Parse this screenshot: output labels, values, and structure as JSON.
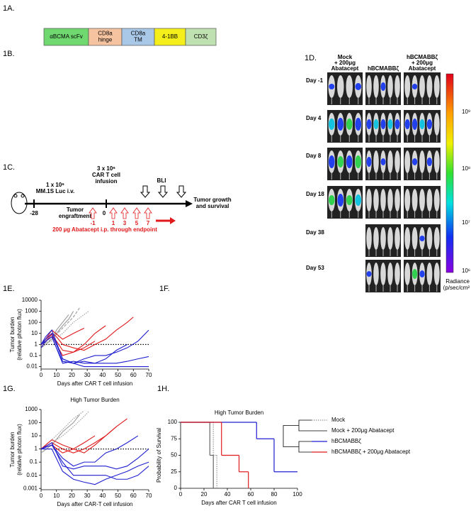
{
  "panels": {
    "a": "1A.",
    "b": "1B.",
    "c": "1C.",
    "d": "1D.",
    "e": "1E.",
    "f": "1F.",
    "g": "1G.",
    "h": "1H."
  },
  "construct": [
    [
      "αBCMA scFv"
    ],
    [
      "CD8a",
      "hinge"
    ],
    [
      "CD8a",
      "TM"
    ],
    [
      "4-1BB"
    ],
    [
      "CD3ζ"
    ]
  ],
  "imaging": {
    "columns": [
      [
        "Mock",
        "+ 200μg",
        "Abatacept"
      ],
      [
        "hBCMABBζ"
      ],
      [
        "hBCMABBζ",
        "+ 200μg",
        "Abatacept"
      ]
    ],
    "rows": [
      "Day -1",
      "Day 4",
      "Day 8",
      "Day 18",
      "Day 38",
      "Day 53"
    ],
    "colorbar_labels": [
      "10⁹",
      "10⁸",
      "10⁷",
      "10⁶"
    ],
    "colorbar_title": [
      "Radiance",
      "(p/sec/cm²"
    ]
  },
  "timeline": {
    "injection": [
      "1 x 10⁶",
      "MM.1S Luc i.v."
    ],
    "infusion": [
      "3 x 10⁶",
      "CAR T cell",
      "infusion"
    ],
    "bli": "BLI",
    "outcome": [
      "Tumor growth",
      "and survival"
    ],
    "day_start": "-28",
    "engraftment": [
      "Tumor",
      "engraftment"
    ],
    "day_zero": "0",
    "abatacept_days": [
      "-1",
      "1",
      "3",
      "5",
      "7"
    ],
    "abatacept_note": "200 µg Abatacept i.p. through endpoint"
  },
  "chart_data": [
    {
      "type": "line",
      "ylog": true,
      "ylabel": [
        "Tumor burden",
        "(relative photon flux)"
      ],
      "xlabel": "Days after CAR T cell infusion",
      "xlim": [
        0,
        70
      ],
      "xticks": [
        0,
        10,
        20,
        30,
        40,
        50,
        60,
        70
      ],
      "ylim": [
        0.006,
        10000
      ],
      "yticks": [
        10000,
        1000,
        100,
        10,
        1,
        0.1,
        0.01
      ],
      "reference_line": 1,
      "series": [
        {
          "color": "#9a9a9a",
          "x": [
            0,
            3,
            7,
            10,
            14,
            18,
            21
          ],
          "values": [
            1,
            2,
            5,
            10,
            50,
            200,
            1000
          ]
        },
        {
          "color": "#9a9a9a",
          "x": [
            0,
            3,
            7,
            10,
            14,
            18
          ],
          "values": [
            0.5,
            1,
            3,
            20,
            100,
            500
          ]
        },
        {
          "color": "#9a9a9a",
          "dash": "dashed",
          "x": [
            0,
            7,
            14,
            21,
            25
          ],
          "values": [
            1,
            3,
            30,
            300,
            2000
          ]
        },
        {
          "color": "#9a9a9a",
          "dash": "dotted",
          "x": [
            0,
            7,
            14,
            21,
            28,
            31
          ],
          "values": [
            1,
            2,
            10,
            100,
            500,
            1000
          ]
        },
        {
          "color": "#e0191b",
          "x": [
            0,
            3,
            7,
            10,
            14,
            21,
            28,
            35,
            42,
            49,
            56,
            60
          ],
          "values": [
            1,
            3,
            10,
            5,
            1,
            0.5,
            0.3,
            1,
            3,
            20,
            100,
            300
          ]
        },
        {
          "color": "#e0191b",
          "x": [
            0,
            3,
            7,
            10,
            14,
            21,
            28,
            35,
            42
          ],
          "values": [
            1,
            2,
            5,
            2,
            0.3,
            0.2,
            1,
            10,
            50
          ]
        },
        {
          "color": "#e0191b",
          "x": [
            0,
            3,
            7,
            10,
            14,
            21,
            28,
            35
          ],
          "values": [
            0.5,
            2,
            8,
            1,
            0.1,
            0.2,
            0.5,
            2
          ]
        },
        {
          "color": "#e0191b",
          "x": [
            0,
            3,
            7,
            14,
            21,
            28
          ],
          "values": [
            1,
            3,
            20,
            3,
            10,
            30
          ]
        },
        {
          "color": "#1f1fcf",
          "x": [
            0,
            3,
            7,
            10,
            14,
            21,
            28,
            35,
            42,
            49,
            56,
            63,
            70
          ],
          "values": [
            1,
            3,
            10,
            1,
            0.05,
            0.02,
            0.01,
            0.01,
            0.01,
            0.01,
            0.01,
            0.01,
            0.01
          ]
        },
        {
          "color": "#1f1fcf",
          "x": [
            0,
            3,
            7,
            10,
            14,
            21,
            28,
            35,
            42,
            49,
            56,
            63,
            70
          ],
          "values": [
            1,
            2,
            5,
            0.5,
            0.03,
            0.02,
            0.03,
            0.02,
            0.02,
            0.02,
            0.03,
            0.05,
            0.08
          ]
        },
        {
          "color": "#1f1fcf",
          "x": [
            0,
            3,
            7,
            14,
            21,
            28,
            35,
            42,
            49,
            56,
            63,
            70
          ],
          "values": [
            1,
            5,
            20,
            0.05,
            0.02,
            0.05,
            0.1,
            0.1,
            0.2,
            0.5,
            2,
            20
          ]
        },
        {
          "color": "#1f1fcf",
          "x": [
            0,
            3,
            7,
            14,
            21,
            28,
            35,
            42,
            49,
            56
          ],
          "values": [
            0.5,
            2,
            5,
            0.02,
            0.03,
            0.02,
            0.02,
            0.05,
            0.3,
            1
          ]
        }
      ]
    },
    {
      "type": "line",
      "ylog": true,
      "title": "High Tumor Burden",
      "ylabel": [
        "Tumor burden",
        "(relative photon flux)"
      ],
      "xlabel": "Days after CAR-T cell infusion",
      "xlim": [
        0,
        70
      ],
      "xticks": [
        0,
        10,
        20,
        30,
        40,
        50,
        60,
        70
      ],
      "ylim": [
        0.0008,
        1000
      ],
      "yticks": [
        1000,
        100,
        10,
        1,
        0.1,
        0.01,
        0.001
      ],
      "reference_line": 1,
      "series": [
        {
          "color": "#9a9a9a",
          "dash": "dotted",
          "x": [
            0,
            7,
            14,
            21,
            28
          ],
          "values": [
            1,
            5,
            30,
            200,
            800
          ]
        },
        {
          "color": "#9a9a9a",
          "x": [
            0,
            7,
            14,
            21,
            25
          ],
          "values": [
            0.5,
            2,
            20,
            100,
            400
          ]
        },
        {
          "color": "#9a9a9a",
          "dash": "dotted",
          "x": [
            0,
            7,
            14,
            21,
            28,
            31
          ],
          "values": [
            1,
            3,
            10,
            50,
            300,
            700
          ]
        },
        {
          "color": "#e0191b",
          "x": [
            0,
            7,
            14,
            21,
            28,
            35,
            42,
            49,
            56
          ],
          "values": [
            1,
            3,
            1,
            0.5,
            1,
            3,
            10,
            50,
            200
          ]
        },
        {
          "color": "#e0191b",
          "x": [
            0,
            7,
            14,
            21,
            28,
            35,
            42,
            49
          ],
          "values": [
            1,
            5,
            2,
            1,
            0.5,
            2,
            10,
            50
          ]
        },
        {
          "color": "#e0191b",
          "x": [
            0,
            7,
            14,
            21,
            28,
            35
          ],
          "values": [
            1,
            2,
            0.5,
            1,
            3,
            10
          ]
        },
        {
          "color": "#1f1fcf",
          "x": [
            0,
            7,
            14,
            21,
            28,
            35,
            42,
            49,
            56,
            63,
            70
          ],
          "values": [
            1,
            2,
            0.1,
            0.01,
            0.01,
            0.01,
            0.01,
            0.005,
            0.005,
            0.01,
            0.05
          ]
        },
        {
          "color": "#1f1fcf",
          "x": [
            0,
            7,
            14,
            21,
            28,
            35,
            42,
            49,
            56,
            63,
            70
          ],
          "values": [
            1,
            3,
            0.05,
            0.03,
            0.05,
            0.05,
            0.05,
            0.03,
            0.05,
            0.2,
            1
          ]
        },
        {
          "color": "#1f1fcf",
          "x": [
            0,
            7,
            14,
            21,
            28,
            35,
            42,
            49,
            56,
            63
          ],
          "values": [
            1,
            2,
            0.2,
            0.05,
            0.1,
            0.1,
            0.5,
            1,
            3,
            10
          ]
        },
        {
          "color": "#1f1fcf",
          "x": [
            0,
            7,
            14,
            21,
            28,
            35,
            42,
            49,
            56,
            63,
            70
          ],
          "values": [
            1,
            1,
            0.02,
            0.005,
            0.003,
            0.002,
            0.005,
            0.01,
            0.02,
            0.05,
            0.1
          ]
        }
      ]
    },
    {
      "type": "step",
      "title": "High Tumor Burden",
      "ylabel": [
        "Probability of Survival"
      ],
      "xlabel": "Days after CAR T cell infusion",
      "xlim": [
        0,
        100
      ],
      "xticks": [
        0,
        20,
        40,
        60,
        80,
        100
      ],
      "ylim": [
        0,
        100
      ],
      "yticks": [
        0,
        25,
        50,
        75,
        100
      ],
      "legend": "right",
      "series": [
        {
          "name": "Mock",
          "color": "#9a9a9a",
          "dash": "dotted",
          "x": [
            0,
            28,
            31
          ],
          "values": [
            100,
            50,
            0
          ]
        },
        {
          "name": "Mock + 200μg Abatacept",
          "color": "#666666",
          "x": [
            0,
            25,
            28
          ],
          "values": [
            100,
            50,
            0
          ]
        },
        {
          "name": "hBCMABBζ",
          "color": "#1f1fcf",
          "x": [
            0,
            65,
            80,
            100
          ],
          "values": [
            100,
            75,
            25,
            25
          ]
        },
        {
          "name": "hBCMABBζ + 200μg Abatacept",
          "color": "#e0191b",
          "x": [
            0,
            35,
            50,
            58
          ],
          "values": [
            100,
            50,
            25,
            0
          ]
        }
      ]
    }
  ]
}
